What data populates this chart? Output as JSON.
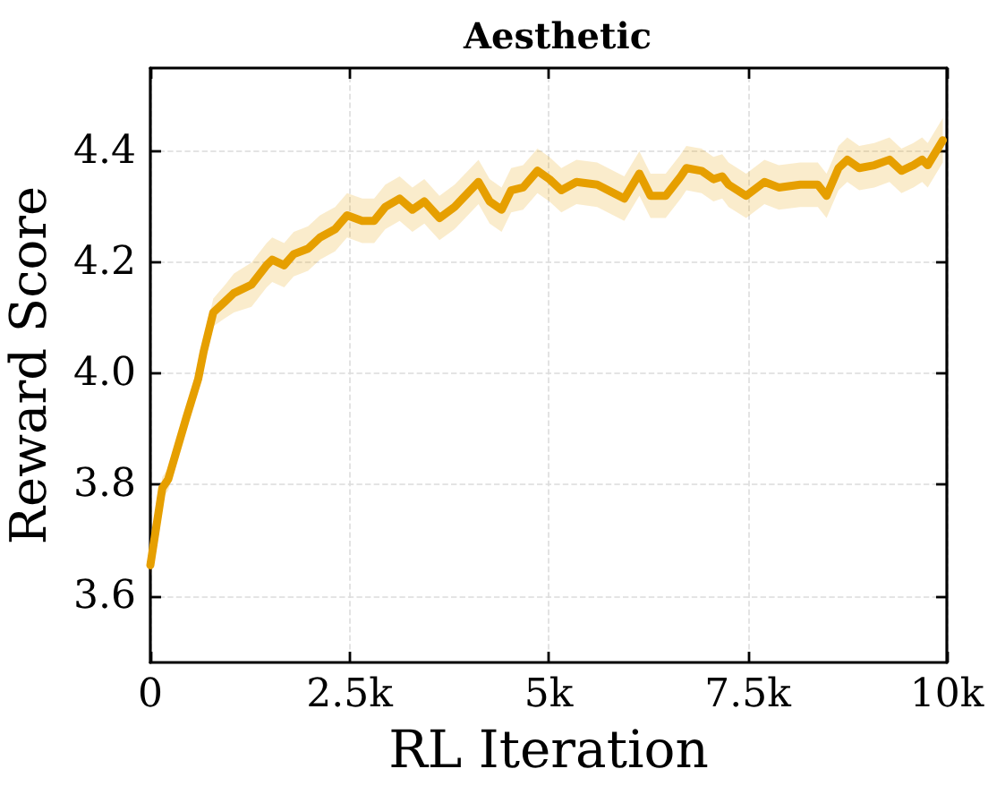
{
  "chart_data": {
    "type": "line",
    "title": "Aesthetic",
    "xlabel": "RL Iteration",
    "ylabel": "Reward Score",
    "x": [
      0,
      150,
      225,
      450,
      600,
      670,
      790,
      940,
      1050,
      1270,
      1460,
      1530,
      1680,
      1800,
      1980,
      2130,
      2320,
      2470,
      2660,
      2810,
      2950,
      3130,
      3290,
      3440,
      3630,
      3820,
      4120,
      4260,
      4410,
      4530,
      4680,
      4860,
      5010,
      5160,
      5350,
      5610,
      5950,
      6140,
      6280,
      6470,
      6660,
      6730,
      6920,
      7070,
      7180,
      7260,
      7480,
      7710,
      7890,
      8160,
      8380,
      8490,
      8640,
      8750,
      8900,
      9090,
      9280,
      9430,
      9580,
      9690,
      9760,
      9950
    ],
    "series": [
      {
        "color": "#e69f00",
        "values": [
          3.655,
          3.794,
          3.81,
          3.92,
          3.99,
          4.04,
          4.11,
          4.13,
          4.145,
          4.16,
          4.195,
          4.205,
          4.195,
          4.215,
          4.225,
          4.245,
          4.26,
          4.285,
          4.275,
          4.275,
          4.3,
          4.315,
          4.295,
          4.31,
          4.28,
          4.3,
          4.345,
          4.31,
          4.295,
          4.33,
          4.335,
          4.365,
          4.35,
          4.33,
          4.345,
          4.34,
          4.315,
          4.36,
          4.32,
          4.32,
          4.355,
          4.37,
          4.365,
          4.35,
          4.355,
          4.34,
          4.32,
          4.345,
          4.335,
          4.34,
          4.34,
          4.32,
          4.37,
          4.385,
          4.37,
          4.375,
          4.385,
          4.365,
          4.375,
          4.385,
          4.375,
          4.42
        ],
        "lower": [
          3.635,
          3.774,
          3.79,
          3.9,
          3.97,
          4.02,
          4.085,
          4.1,
          4.11,
          4.12,
          4.155,
          4.165,
          4.155,
          4.175,
          4.185,
          4.205,
          4.22,
          4.245,
          4.235,
          4.235,
          4.26,
          4.275,
          4.255,
          4.27,
          4.24,
          4.26,
          4.305,
          4.27,
          4.255,
          4.29,
          4.295,
          4.325,
          4.31,
          4.29,
          4.305,
          4.3,
          4.275,
          4.32,
          4.28,
          4.28,
          4.315,
          4.33,
          4.325,
          4.31,
          4.315,
          4.3,
          4.28,
          4.305,
          4.295,
          4.3,
          4.3,
          4.28,
          4.33,
          4.345,
          4.33,
          4.335,
          4.345,
          4.325,
          4.335,
          4.345,
          4.335,
          4.38
        ],
        "upper": [
          3.675,
          3.814,
          3.83,
          3.94,
          4.01,
          4.06,
          4.135,
          4.16,
          4.18,
          4.2,
          4.235,
          4.245,
          4.235,
          4.255,
          4.265,
          4.285,
          4.3,
          4.325,
          4.315,
          4.315,
          4.34,
          4.355,
          4.335,
          4.35,
          4.32,
          4.34,
          4.385,
          4.35,
          4.335,
          4.37,
          4.375,
          4.405,
          4.39,
          4.37,
          4.385,
          4.38,
          4.355,
          4.4,
          4.36,
          4.36,
          4.395,
          4.41,
          4.405,
          4.39,
          4.395,
          4.38,
          4.36,
          4.385,
          4.375,
          4.38,
          4.38,
          4.36,
          4.41,
          4.425,
          4.41,
          4.415,
          4.425,
          4.405,
          4.415,
          4.425,
          4.415,
          4.46
        ]
      }
    ],
    "xlim": [
      0,
      10000
    ],
    "xticks": [
      0,
      {
        "value": 2500,
        "label": "2.5k"
      },
      {
        "value": 5000,
        "label": "5k"
      },
      {
        "value": 7500,
        "label": "7.5k"
      },
      {
        "value": 10000,
        "label": "10k"
      }
    ],
    "ylim": [
      3.48,
      4.55
    ],
    "yticks": [
      3.6,
      3.8,
      {
        "value": 4,
        "label": "4.0"
      },
      4.2,
      4.4
    ],
    "grid": true
  }
}
